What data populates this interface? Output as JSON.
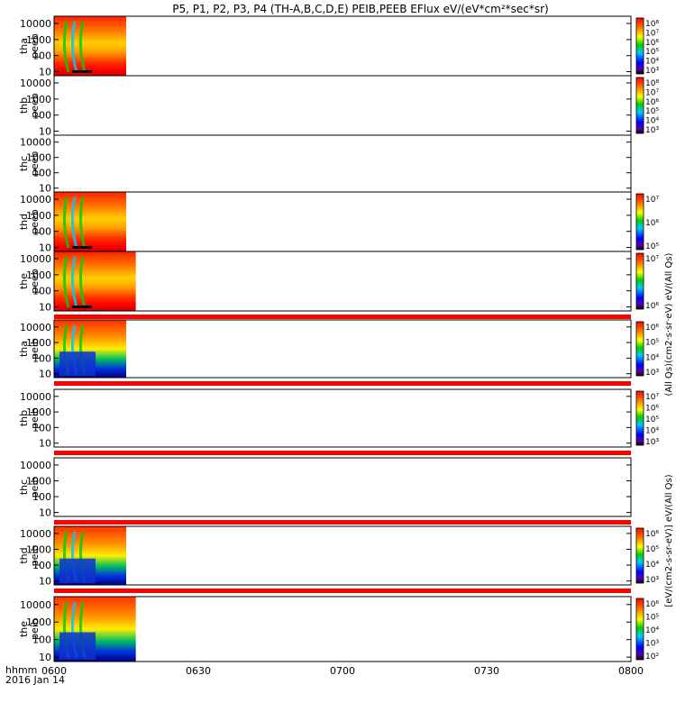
{
  "title": "P5, P1, P2, P3, P4 (TH-A,B,C,D,E) PEIB,PEEB EFlux eV/(eV*cm²*sec*sr)",
  "time_axis": {
    "labels": [
      "0600",
      "0630",
      "0700",
      "0730",
      "0800"
    ],
    "start_label": "hhmm",
    "date_label": "2016 Jan 14"
  },
  "colorbar_labels": {
    "upper": "(All Qs)(cm2·s·sr·eV)  eV/(All Qs)",
    "lower": "[eV/(cm2-s-sr-eV)]  eV/(All Qs)"
  },
  "chart_data": {
    "type": "heatmap",
    "x_range": [
      "0600",
      "0800"
    ],
    "y_axis": {
      "scale": "log",
      "ticks": [
        "10",
        "100",
        "1000",
        "10000"
      ]
    },
    "panels": [
      {
        "label1": "tha",
        "label2": "peeb",
        "coverage_end": "0615",
        "has_data": true,
        "cbar_ticks": [
          "10⁸",
          "10⁷",
          "10⁶",
          "10⁵",
          "10⁴",
          "10³"
        ],
        "has_cbar": true,
        "separator": false
      },
      {
        "label1": "thb",
        "label2": "peeb",
        "coverage_end": null,
        "has_data": false,
        "cbar_ticks": [
          "10⁸",
          "10⁷",
          "10⁶",
          "10⁵",
          "10⁴",
          "10³"
        ],
        "has_cbar": true,
        "separator": false
      },
      {
        "label1": "thc",
        "label2": "peeb",
        "coverage_end": null,
        "has_data": false,
        "cbar_ticks": [],
        "has_cbar": false,
        "separator": false
      },
      {
        "label1": "thd",
        "label2": "peeb",
        "coverage_end": "0615",
        "has_data": true,
        "cbar_ticks": [
          "10⁷",
          "10⁶",
          "10⁵"
        ],
        "has_cbar": true,
        "separator": false
      },
      {
        "label1": "the",
        "label2": "peeb",
        "coverage_end": "0617",
        "has_data": true,
        "cbar_ticks": [
          "10⁷",
          "10⁶"
        ],
        "has_cbar": true,
        "separator": true
      },
      {
        "label1": "tha",
        "label2": "peib",
        "coverage_end": "0615",
        "has_data": true,
        "cbar_ticks": [
          "10⁶",
          "10⁵",
          "10⁴",
          "10³"
        ],
        "has_cbar": true,
        "separator": true
      },
      {
        "label1": "thb",
        "label2": "peib",
        "coverage_end": null,
        "has_data": false,
        "cbar_ticks": [
          "10⁷",
          "10⁶",
          "10⁵",
          "10⁴",
          "10³"
        ],
        "has_cbar": true,
        "separator": true
      },
      {
        "label1": "thc",
        "label2": "peib",
        "coverage_end": null,
        "has_data": false,
        "cbar_ticks": [],
        "has_cbar": false,
        "separator": true
      },
      {
        "label1": "thd",
        "label2": "peib",
        "coverage_end": "0615",
        "has_data": true,
        "cbar_ticks": [
          "10⁶",
          "10⁵",
          "10⁴",
          "10³"
        ],
        "has_cbar": true,
        "separator": true
      },
      {
        "label1": "the",
        "label2": "peib",
        "coverage_end": "0617",
        "has_data": true,
        "cbar_ticks": [
          "10⁶",
          "10⁵",
          "10⁴",
          "10³",
          "10²"
        ],
        "has_cbar": true,
        "separator": false
      }
    ]
  }
}
